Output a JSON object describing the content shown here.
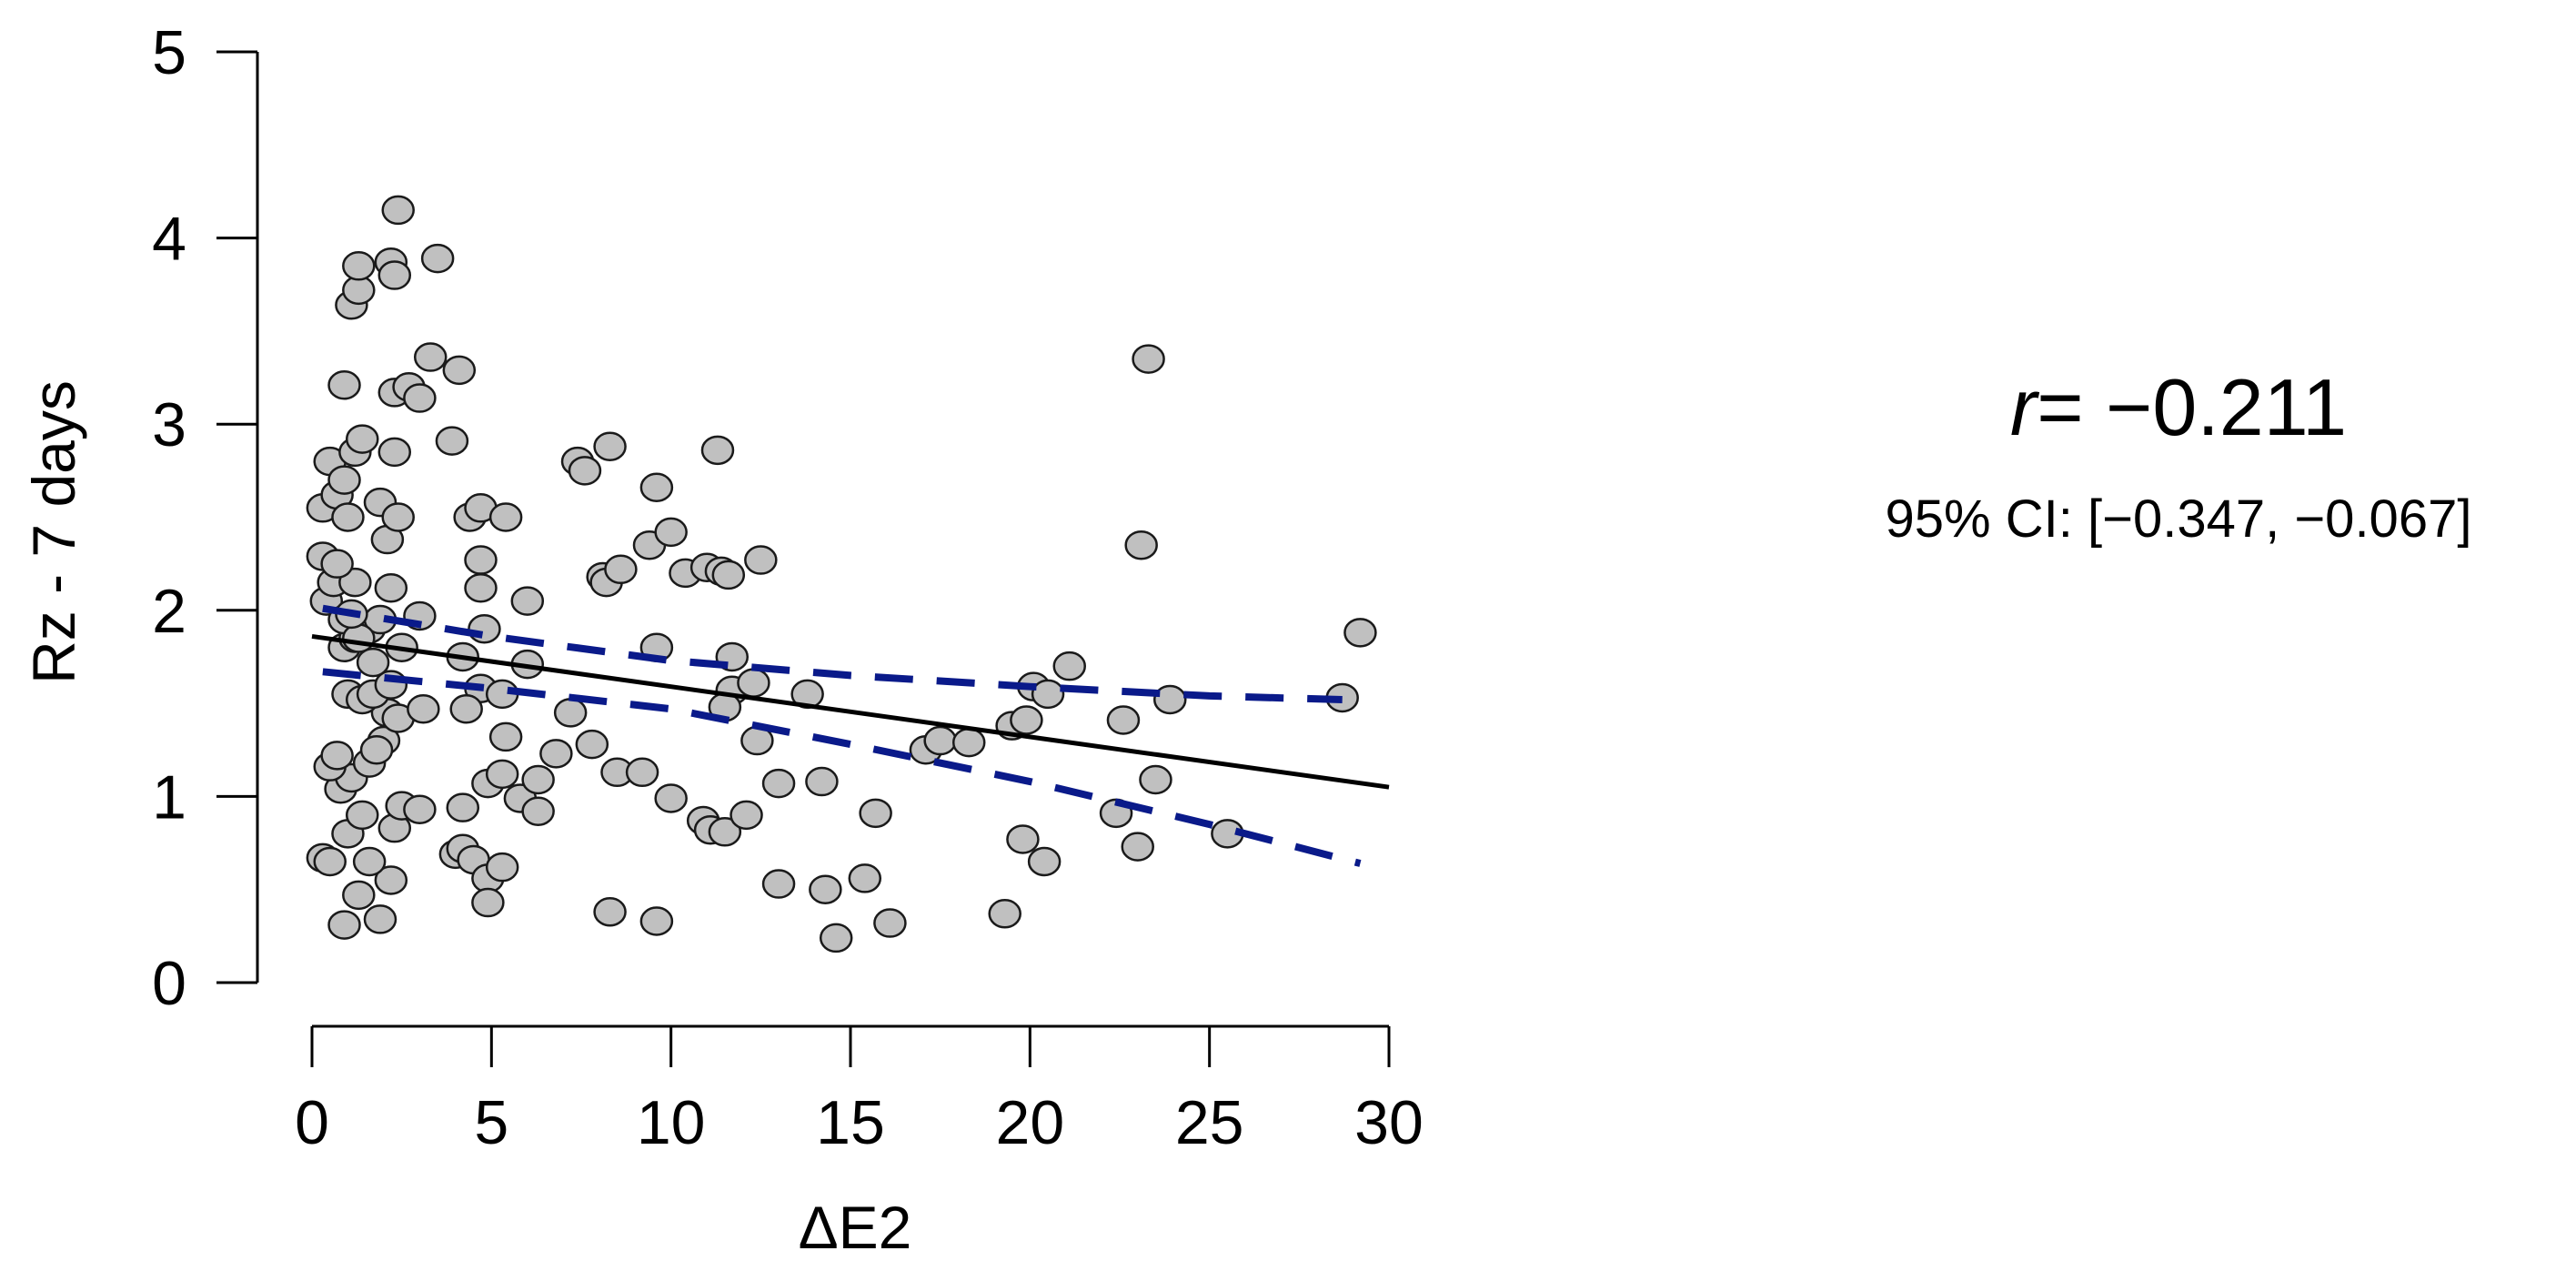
{
  "chart_data": {
    "type": "scatter",
    "xlabel": "ΔE2",
    "ylabel": "Rz - 7 days",
    "xlim": [
      0,
      30
    ],
    "ylim": [
      0,
      5
    ],
    "x_ticks": [
      "0",
      "5",
      "10",
      "15",
      "20",
      "25",
      "30"
    ],
    "y_ticks": [
      "0",
      "1",
      "2",
      "3",
      "4",
      "5"
    ],
    "stat_r_symbol": "r",
    "stat_r_value": "= −0.211",
    "stat_ci": "95% CI: [−0.347, −0.067]",
    "colors": {
      "point_fill": "#c0c0c0",
      "point_stroke": "#1a1a1a",
      "fit": "#000000",
      "ci_band": "#0a1a8a"
    },
    "fit_line": {
      "x": [
        0,
        30
      ],
      "y": [
        1.86,
        1.05
      ]
    },
    "ci_upper": {
      "x": [
        0.3,
        5,
        10,
        15,
        20,
        25,
        28.7
      ],
      "y": [
        2.01,
        1.86,
        1.73,
        1.65,
        1.59,
        1.54,
        1.52
      ]
    },
    "ci_lower": {
      "x": [
        0.3,
        5,
        10,
        15,
        20,
        25,
        29.2
      ],
      "y": [
        1.67,
        1.58,
        1.47,
        1.28,
        1.08,
        0.85,
        0.64
      ]
    },
    "points": [
      [
        0.3,
        0.67
      ],
      [
        0.5,
        0.65
      ],
      [
        0.9,
        0.31
      ],
      [
        1.3,
        0.47
      ],
      [
        1.9,
        0.34
      ],
      [
        2.2,
        0.55
      ],
      [
        1.6,
        0.65
      ],
      [
        1.0,
        0.8
      ],
      [
        1.4,
        0.9
      ],
      [
        2.3,
        0.83
      ],
      [
        2.5,
        0.95
      ],
      [
        3.0,
        0.93
      ],
      [
        2.0,
        1.3
      ],
      [
        0.8,
        1.04
      ],
      [
        1.1,
        1.1
      ],
      [
        0.5,
        1.16
      ],
      [
        0.7,
        1.22
      ],
      [
        1.6,
        1.18
      ],
      [
        1.8,
        1.25
      ],
      [
        2.1,
        1.45
      ],
      [
        2.4,
        1.42
      ],
      [
        3.1,
        1.47
      ],
      [
        1.0,
        1.55
      ],
      [
        1.4,
        1.52
      ],
      [
        1.7,
        1.55
      ],
      [
        2.2,
        1.6
      ],
      [
        0.9,
        1.8
      ],
      [
        1.2,
        1.85
      ],
      [
        1.6,
        1.9
      ],
      [
        1.9,
        1.95
      ],
      [
        2.5,
        1.8
      ],
      [
        3.0,
        1.97
      ],
      [
        0.4,
        2.05
      ],
      [
        0.6,
        2.15
      ],
      [
        1.2,
        2.15
      ],
      [
        0.9,
        1.95
      ],
      [
        1.3,
        1.85
      ],
      [
        1.7,
        1.72
      ],
      [
        1.1,
        1.98
      ],
      [
        2.2,
        2.12
      ],
      [
        0.3,
        2.29
      ],
      [
        0.7,
        2.25
      ],
      [
        2.1,
        2.38
      ],
      [
        0.3,
        2.55
      ],
      [
        0.7,
        2.62
      ],
      [
        1.0,
        2.5
      ],
      [
        1.9,
        2.58
      ],
      [
        2.4,
        2.5
      ],
      [
        0.5,
        2.8
      ],
      [
        0.9,
        2.7
      ],
      [
        1.2,
        2.85
      ],
      [
        1.4,
        2.92
      ],
      [
        2.3,
        2.85
      ],
      [
        0.9,
        3.21
      ],
      [
        2.3,
        3.17
      ],
      [
        2.7,
        3.2
      ],
      [
        3.0,
        3.14
      ],
      [
        3.3,
        3.36
      ],
      [
        4.1,
        3.29
      ],
      [
        1.1,
        3.64
      ],
      [
        1.3,
        3.72
      ],
      [
        1.3,
        3.85
      ],
      [
        2.2,
        3.87
      ],
      [
        2.3,
        3.8
      ],
      [
        3.5,
        3.89
      ],
      [
        2.4,
        4.15
      ],
      [
        3.9,
        2.91
      ],
      [
        4.4,
        2.5
      ],
      [
        4.7,
        2.55
      ],
      [
        5.4,
        2.5
      ],
      [
        4.7,
        2.27
      ],
      [
        4.7,
        2.12
      ],
      [
        6.0,
        2.05
      ],
      [
        4.8,
        1.9
      ],
      [
        4.2,
        1.75
      ],
      [
        6.0,
        1.71
      ],
      [
        4.7,
        1.58
      ],
      [
        5.3,
        1.55
      ],
      [
        4.3,
        1.47
      ],
      [
        5.4,
        1.32
      ],
      [
        4.9,
        1.07
      ],
      [
        5.3,
        1.12
      ],
      [
        5.8,
        0.99
      ],
      [
        6.3,
        1.09
      ],
      [
        6.3,
        0.92
      ],
      [
        6.8,
        1.23
      ],
      [
        7.2,
        1.45
      ],
      [
        7.8,
        1.28
      ],
      [
        4.2,
        0.94
      ],
      [
        4.0,
        0.69
      ],
      [
        4.2,
        0.72
      ],
      [
        4.5,
        0.66
      ],
      [
        4.9,
        0.56
      ],
      [
        5.3,
        0.62
      ],
      [
        4.9,
        0.43
      ],
      [
        7.4,
        2.8
      ],
      [
        7.6,
        2.75
      ],
      [
        8.3,
        2.88
      ],
      [
        8.1,
        2.18
      ],
      [
        8.2,
        2.15
      ],
      [
        8.6,
        2.22
      ],
      [
        9.4,
        2.35
      ],
      [
        9.6,
        2.66
      ],
      [
        10.0,
        2.42
      ],
      [
        9.6,
        1.8
      ],
      [
        10.4,
        2.2
      ],
      [
        11.0,
        2.23
      ],
      [
        11.3,
        2.86
      ],
      [
        11.4,
        2.21
      ],
      [
        11.6,
        2.19
      ],
      [
        12.5,
        2.27
      ],
      [
        11.7,
        1.75
      ],
      [
        11.7,
        1.57
      ],
      [
        12.3,
        1.61
      ],
      [
        11.5,
        1.48
      ],
      [
        12.4,
        1.3
      ],
      [
        8.5,
        1.13
      ],
      [
        9.2,
        1.13
      ],
      [
        10.0,
        0.99
      ],
      [
        10.9,
        0.87
      ],
      [
        11.1,
        0.82
      ],
      [
        11.5,
        0.81
      ],
      [
        12.1,
        0.9
      ],
      [
        13.0,
        1.07
      ],
      [
        13.0,
        0.53
      ],
      [
        8.3,
        0.38
      ],
      [
        9.6,
        0.33
      ],
      [
        13.8,
        1.55
      ],
      [
        14.2,
        1.08
      ],
      [
        14.3,
        0.5
      ],
      [
        14.6,
        0.24
      ],
      [
        15.4,
        0.56
      ],
      [
        15.7,
        0.91
      ],
      [
        16.1,
        0.32
      ],
      [
        17.1,
        1.25
      ],
      [
        17.5,
        1.3
      ],
      [
        18.3,
        1.29
      ],
      [
        19.3,
        0.37
      ],
      [
        19.5,
        1.38
      ],
      [
        19.9,
        1.41
      ],
      [
        19.8,
        0.77
      ],
      [
        20.1,
        1.59
      ],
      [
        20.5,
        1.55
      ],
      [
        21.1,
        1.7
      ],
      [
        20.4,
        0.65
      ],
      [
        22.4,
        0.91
      ],
      [
        22.6,
        1.41
      ],
      [
        23.1,
        2.35
      ],
      [
        23.3,
        3.35
      ],
      [
        23.0,
        0.73
      ],
      [
        23.5,
        1.09
      ],
      [
        23.9,
        1.52
      ],
      [
        25.5,
        0.8
      ],
      [
        28.7,
        1.53
      ],
      [
        29.2,
        1.88
      ]
    ]
  }
}
